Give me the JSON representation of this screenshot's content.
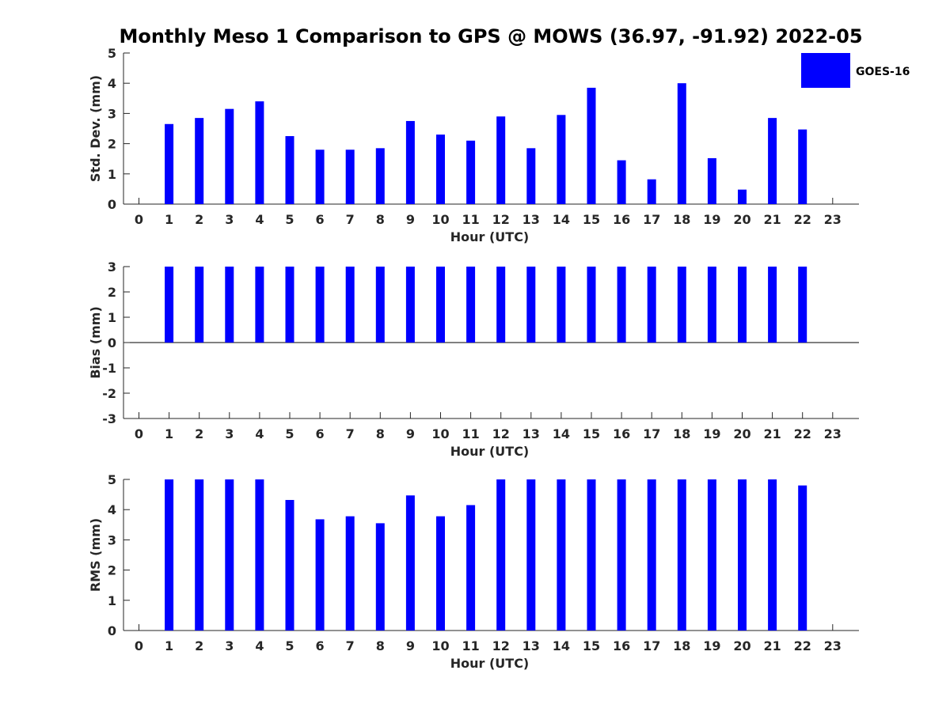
{
  "title": "Monthly Meso 1 Comparison to GPS @ MOWS (36.97, -91.92) 2022-05",
  "legend": {
    "label": "GOES-16",
    "position": "top-right"
  },
  "chart_data": [
    {
      "type": "bar",
      "name": "std_dev",
      "ylabel": "Std. Dev. (mm)",
      "xlabel": "Hour (UTC)",
      "ylim": [
        0,
        5
      ],
      "yticks": [
        0,
        1,
        2,
        3,
        4,
        5
      ],
      "xticks": [
        0,
        1,
        2,
        3,
        4,
        5,
        6,
        7,
        8,
        9,
        10,
        11,
        12,
        13,
        14,
        15,
        16,
        17,
        18,
        19,
        20,
        21,
        22,
        23
      ],
      "series": [
        {
          "name": "GOES-16",
          "color": "#0000ff",
          "x": [
            1,
            2,
            3,
            4,
            5,
            6,
            7,
            8,
            9,
            10,
            11,
            12,
            13,
            14,
            15,
            16,
            17,
            18,
            19,
            20,
            21,
            22
          ],
          "values": [
            2.65,
            2.85,
            3.15,
            3.4,
            2.25,
            1.8,
            1.8,
            1.85,
            2.75,
            2.3,
            2.1,
            2.9,
            1.85,
            2.95,
            3.85,
            1.45,
            0.82,
            4.0,
            1.52,
            0.48,
            2.85,
            2.47
          ]
        }
      ]
    },
    {
      "type": "bar",
      "name": "bias",
      "ylabel": "Bias (mm)",
      "xlabel": "Hour (UTC)",
      "ylim": [
        -3,
        3
      ],
      "yticks": [
        -3,
        -2,
        -1,
        0,
        1,
        2,
        3
      ],
      "xticks": [
        0,
        1,
        2,
        3,
        4,
        5,
        6,
        7,
        8,
        9,
        10,
        11,
        12,
        13,
        14,
        15,
        16,
        17,
        18,
        19,
        20,
        21,
        22,
        23
      ],
      "series": [
        {
          "name": "GOES-16",
          "color": "#0000ff",
          "x": [
            1,
            2,
            3,
            4,
            5,
            6,
            7,
            8,
            9,
            10,
            11,
            12,
            13,
            14,
            15,
            16,
            17,
            18,
            19,
            20,
            21,
            22
          ],
          "values": [
            3,
            3,
            3,
            3,
            3,
            3,
            3,
            3,
            3,
            3,
            3,
            3,
            3,
            3,
            3,
            3,
            3,
            3,
            3,
            3,
            3,
            3
          ]
        }
      ]
    },
    {
      "type": "bar",
      "name": "rms",
      "ylabel": "RMS (mm)",
      "xlabel": "Hour (UTC)",
      "ylim": [
        0,
        5
      ],
      "yticks": [
        0,
        1,
        2,
        3,
        4,
        5
      ],
      "xticks": [
        0,
        1,
        2,
        3,
        4,
        5,
        6,
        7,
        8,
        9,
        10,
        11,
        12,
        13,
        14,
        15,
        16,
        17,
        18,
        19,
        20,
        21,
        22,
        23
      ],
      "series": [
        {
          "name": "GOES-16",
          "color": "#0000ff",
          "x": [
            1,
            2,
            3,
            4,
            5,
            6,
            7,
            8,
            9,
            10,
            11,
            12,
            13,
            14,
            15,
            16,
            17,
            18,
            19,
            20,
            21,
            22
          ],
          "values": [
            5,
            5,
            5,
            5,
            4.32,
            3.68,
            3.78,
            3.55,
            4.47,
            3.78,
            4.15,
            5,
            5,
            5,
            5,
            5,
            5,
            5,
            5,
            5,
            5,
            4.8
          ]
        }
      ]
    }
  ]
}
